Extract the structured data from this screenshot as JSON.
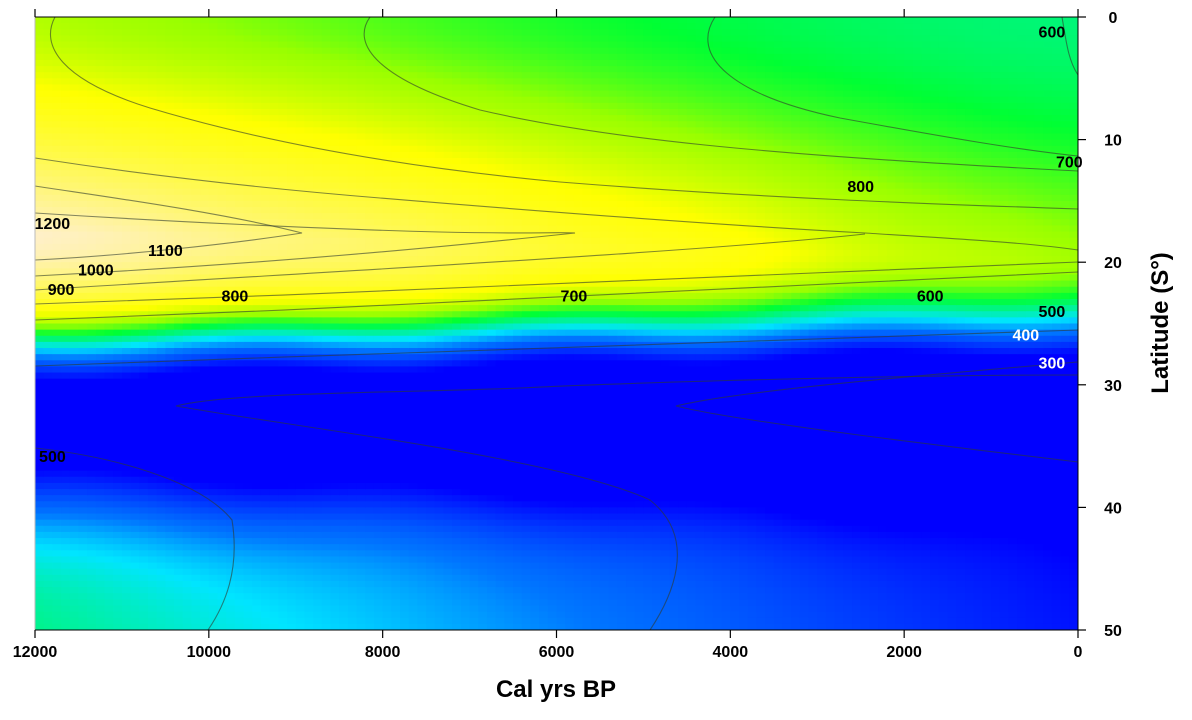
{
  "chart_data": {
    "type": "heatmap",
    "title": "",
    "xlabel": "Cal yrs BP",
    "ylabel": "Latitude (S°)",
    "xlim": [
      12000,
      0
    ],
    "ylim": [
      0,
      50
    ],
    "x_ticks": [
      "12000",
      "10000",
      "8000",
      "6000",
      "4000",
      "2000",
      "0"
    ],
    "x_tick_values": [
      12000,
      10000,
      8000,
      6000,
      4000,
      2000,
      0
    ],
    "y_ticks": [
      "0",
      "10",
      "20",
      "30",
      "40",
      "50"
    ],
    "y_tick_values": [
      0,
      10,
      20,
      30,
      40,
      50
    ],
    "colorscale": [
      "#0000ff",
      "#0077ff",
      "#00e5ff",
      "#00ff33",
      "#99ff00",
      "#ffff00",
      "#fff0c8"
    ],
    "value_range": [
      250,
      1250
    ],
    "contour_labels": [
      {
        "text": "600",
        "x": 300,
        "y": 1.2,
        "color": "#000000"
      },
      {
        "text": "700",
        "x": 100,
        "y": 11.8,
        "color": "#000000"
      },
      {
        "text": "800",
        "x": 2500,
        "y": 13.8,
        "color": "#000000"
      },
      {
        "text": "1200",
        "x": 11800,
        "y": 16.8,
        "color": "#000000"
      },
      {
        "text": "1100",
        "x": 10500,
        "y": 19.0,
        "color": "#000000"
      },
      {
        "text": "1000",
        "x": 11300,
        "y": 20.6,
        "color": "#000000"
      },
      {
        "text": "900",
        "x": 11700,
        "y": 22.2,
        "color": "#000000"
      },
      {
        "text": "800",
        "x": 9700,
        "y": 22.7,
        "color": "#000000"
      },
      {
        "text": "700",
        "x": 5800,
        "y": 22.7,
        "color": "#000000"
      },
      {
        "text": "600",
        "x": 1700,
        "y": 22.7,
        "color": "#000000"
      },
      {
        "text": "500",
        "x": 300,
        "y": 24.0,
        "color": "#000000"
      },
      {
        "text": "400",
        "x": 600,
        "y": 25.9,
        "color": "#ffffff"
      },
      {
        "text": "300",
        "x": 300,
        "y": 28.2,
        "color": "#ffffff"
      },
      {
        "text": "500",
        "x": 11800,
        "y": 35.8,
        "color": "#000000"
      }
    ]
  }
}
